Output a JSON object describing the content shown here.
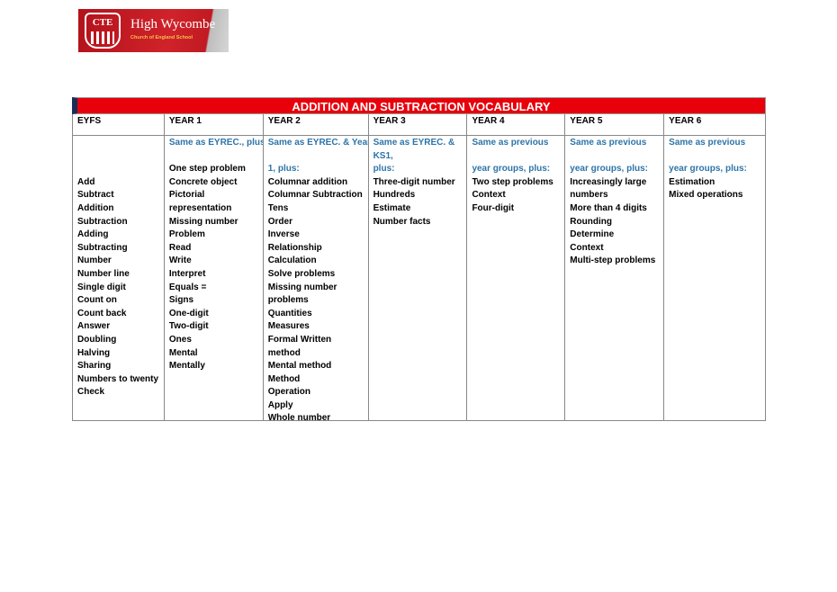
{
  "logo": {
    "initials": "CTE",
    "name": "High Wycombe",
    "subtitle": "Church of England School",
    "brand_color": "#c8161f"
  },
  "table": {
    "title": "ADDITION AND SUBTRACTION VOCABULARY",
    "title_color": "#e8000b",
    "columns": [
      {
        "header": "EYFS",
        "intro": [
          "",
          "",
          ""
        ],
        "items": [
          "Add",
          "Subtract",
          "Addition",
          "Subtraction",
          "Adding",
          "Subtracting",
          "Number",
          "Number line",
          "Single digit",
          "Count on",
          "Count back",
          "Answer",
          "Doubling",
          "Halving",
          "Sharing",
          "Numbers to twenty",
          "Check"
        ]
      },
      {
        "header": "YEAR 1",
        "intro": [
          "Same as EYREC., plus:",
          ""
        ],
        "items": [
          "One step problem",
          "Concrete object",
          "Pictorial",
          "representation",
          "Missing number",
          "Problem",
          "Read",
          "Write",
          "Interpret",
          "Equals =",
          "Signs",
          "One-digit",
          "Two-digit",
          "Ones",
          "Mental",
          "Mentally"
        ]
      },
      {
        "header": "YEAR 2",
        "intro": [
          "Same as EYREC. & Year",
          "",
          "1, plus:"
        ],
        "items": [
          "Columnar addition",
          "Columnar Subtraction",
          "Tens",
          "Order",
          "Inverse",
          "Relationship",
          "Calculation",
          "Solve problems",
          "Missing number",
          "problems",
          "Quantities",
          "Measures",
          "Formal Written",
          "method",
          "Mental method",
          "Method",
          "Operation",
          "Apply",
          "Whole number"
        ]
      },
      {
        "header": "YEAR 3",
        "intro": [
          "Same as EYREC. &",
          "KS1,",
          "plus:"
        ],
        "items": [
          "Three-digit number",
          "Hundreds",
          "Estimate",
          "Number facts"
        ]
      },
      {
        "header": "YEAR 4",
        "intro": [
          "Same as previous",
          "",
          "year groups, plus:"
        ],
        "items": [
          "Two step problems",
          "Context",
          "Four-digit"
        ]
      },
      {
        "header": "YEAR 5",
        "intro": [
          "Same as previous",
          "",
          "year groups, plus:"
        ],
        "items": [
          "Increasingly large",
          "numbers",
          "More than 4 digits",
          "Rounding",
          "Determine",
          "Context",
          "Multi-step problems"
        ]
      },
      {
        "header": "YEAR 6",
        "intro": [
          "Same as previous",
          "",
          "year groups, plus:"
        ],
        "items": [
          "Estimation",
          "Mixed operations"
        ]
      }
    ]
  }
}
